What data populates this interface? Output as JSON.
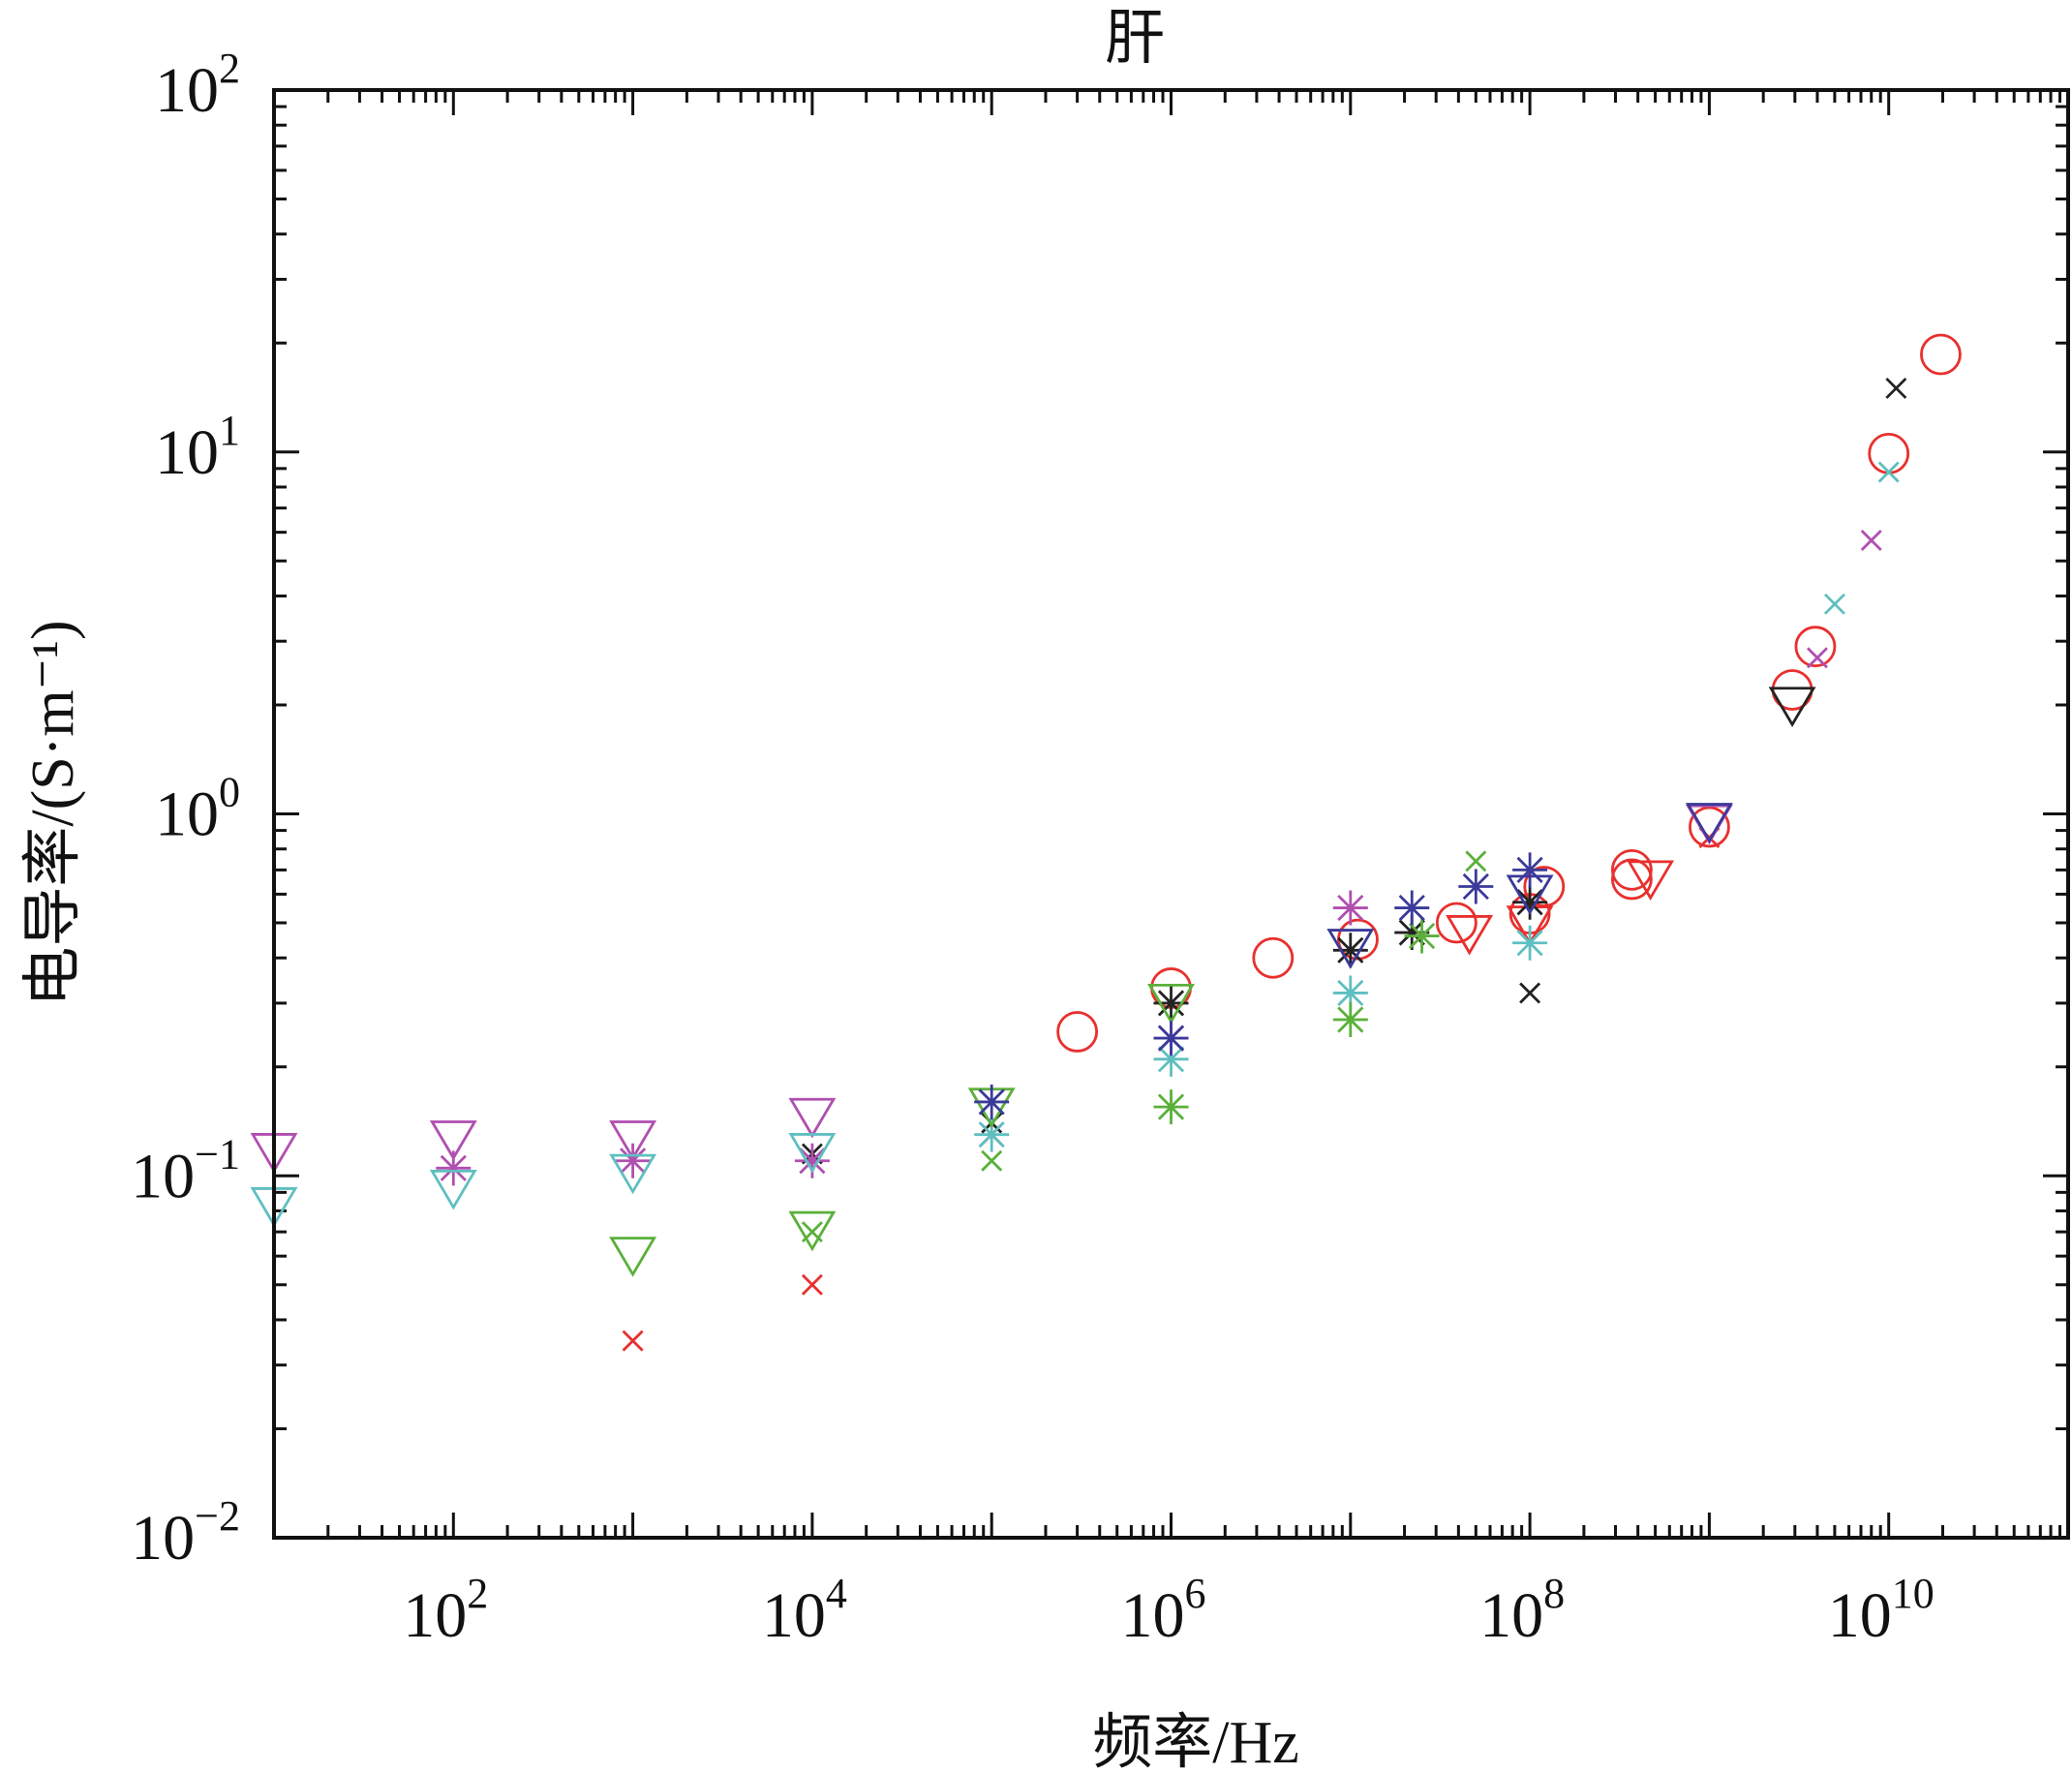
{
  "chart_data": {
    "type": "scatter",
    "title": "肝",
    "xlabel": "频率/Hz",
    "ylabel": "电导率/(S·m⁻¹)",
    "xscale": "log",
    "yscale": "log",
    "xlim": [
      10,
      100000000000.0
    ],
    "ylim": [
      0.01,
      100
    ],
    "xticks": [
      {
        "base": "10",
        "exp": "2",
        "value": 100
      },
      {
        "base": "10",
        "exp": "4",
        "value": 10000
      },
      {
        "base": "10",
        "exp": "6",
        "value": 1000000
      },
      {
        "base": "10",
        "exp": "8",
        "value": 100000000
      },
      {
        "base": "10",
        "exp": "10",
        "value": 10000000000
      }
    ],
    "yticks": [
      {
        "base": "10",
        "exp": "−2",
        "value": 0.01
      },
      {
        "base": "10",
        "exp": "−1",
        "value": 0.1
      },
      {
        "base": "10",
        "exp": "0",
        "value": 1
      },
      {
        "base": "10",
        "exp": "1",
        "value": 10
      },
      {
        "base": "10",
        "exp": "2",
        "value": 100
      }
    ],
    "grid": false,
    "series": [
      {
        "name": "red-circle",
        "color": "#e8302e",
        "marker": "circle",
        "points": [
          [
            300000.0,
            0.25
          ],
          [
            1000000.0,
            0.33
          ],
          [
            3700000.0,
            0.4
          ],
          [
            11000000.0,
            0.45
          ],
          [
            39000000.0,
            0.5
          ],
          [
            100000000.0,
            0.53
          ],
          [
            120000000.0,
            0.63
          ],
          [
            370000000.0,
            0.66
          ],
          [
            370000000.0,
            0.7
          ],
          [
            1000000000.0,
            0.92
          ],
          [
            2900000000.0,
            2.2
          ],
          [
            3900000000.0,
            2.9
          ],
          [
            10000000000.0,
            9.9
          ],
          [
            19500000000.0,
            18.6
          ]
        ]
      },
      {
        "name": "red-triangle",
        "color": "#e8302e",
        "marker": "triangle",
        "points": [
          [
            46000000.0,
            0.48
          ],
          [
            100000000.0,
            0.51
          ],
          [
            470000000.0,
            0.68
          ]
        ]
      },
      {
        "name": "red-x",
        "color": "#e8302e",
        "marker": "x",
        "points": [
          [
            1000.0,
            0.035
          ],
          [
            10000.0,
            0.05
          ],
          [
            100000.0,
            0.13
          ],
          [
            1000000000.0,
            0.86
          ]
        ]
      },
      {
        "name": "black-triangle",
        "color": "#222222",
        "marker": "triangle",
        "points": [
          [
            2900000000.0,
            2.05
          ]
        ]
      },
      {
        "name": "black-x",
        "color": "#222222",
        "marker": "x",
        "points": [
          [
            11000000000.0,
            15
          ],
          [
            100000000.0,
            0.32
          ],
          [
            100000.0,
            0.14
          ],
          [
            10000.0,
            0.115
          ]
        ]
      },
      {
        "name": "black-asterisk",
        "color": "#222222",
        "marker": "asterisk",
        "points": [
          [
            1000000.0,
            0.3
          ],
          [
            22000000.0,
            0.47
          ],
          [
            100000000.0,
            0.57
          ],
          [
            10000000.0,
            0.42
          ]
        ]
      },
      {
        "name": "magenta-triangle",
        "color": "#b04fb0",
        "marker": "triangle",
        "points": [
          [
            10,
            0.12
          ],
          [
            100,
            0.13
          ],
          [
            1000.0,
            0.13
          ],
          [
            10000.0,
            0.15
          ],
          [
            1000000000.0,
            0.97
          ]
        ]
      },
      {
        "name": "magenta-asterisk",
        "color": "#b04fb0",
        "marker": "asterisk",
        "points": [
          [
            100,
            0.105
          ],
          [
            1000.0,
            0.11
          ],
          [
            10000.0,
            0.11
          ],
          [
            10000000.0,
            0.55
          ],
          [
            1000000.0,
            0.24
          ]
        ]
      },
      {
        "name": "magenta-x",
        "color": "#b04fb0",
        "marker": "x",
        "points": [
          [
            8000000000.0,
            5.7
          ],
          [
            4000000000.0,
            2.7
          ]
        ]
      },
      {
        "name": "cyan-triangle",
        "color": "#5fbfc0",
        "marker": "triangle",
        "points": [
          [
            10,
            0.085
          ],
          [
            100,
            0.095
          ],
          [
            1000.0,
            0.105
          ],
          [
            10000.0,
            0.12
          ]
        ]
      },
      {
        "name": "cyan-asterisk",
        "color": "#5fbfc0",
        "marker": "asterisk",
        "points": [
          [
            10000000.0,
            0.32
          ],
          [
            1000000.0,
            0.21
          ],
          [
            100000000.0,
            0.44
          ],
          [
            100000.0,
            0.13
          ]
        ]
      },
      {
        "name": "cyan-x",
        "color": "#5fbfc0",
        "marker": "x",
        "points": [
          [
            5000000000.0,
            3.8
          ],
          [
            10000000000.0,
            8.8
          ]
        ]
      },
      {
        "name": "green-triangle",
        "color": "#5ab03a",
        "marker": "triangle",
        "points": [
          [
            1000.0,
            0.062
          ],
          [
            10000.0,
            0.073
          ],
          [
            100000.0,
            0.16
          ],
          [
            1000000.0,
            0.31
          ]
        ]
      },
      {
        "name": "green-asterisk",
        "color": "#5ab03a",
        "marker": "asterisk",
        "points": [
          [
            1000000.0,
            0.155
          ],
          [
            10000000.0,
            0.27
          ],
          [
            25000000.0,
            0.46
          ]
        ]
      },
      {
        "name": "green-x",
        "color": "#5ab03a",
        "marker": "x",
        "points": [
          [
            100000.0,
            0.11
          ],
          [
            50000000.0,
            0.74
          ],
          [
            10000.0,
            0.07
          ]
        ]
      },
      {
        "name": "blue-triangle",
        "color": "#3a3a9a",
        "marker": "triangle",
        "points": [
          [
            10000000.0,
            0.44
          ],
          [
            100000000.0,
            0.62
          ],
          [
            1000000000.0,
            0.98
          ]
        ]
      },
      {
        "name": "blue-asterisk",
        "color": "#3a3a9a",
        "marker": "asterisk",
        "points": [
          [
            100000.0,
            0.16
          ],
          [
            22000000.0,
            0.55
          ],
          [
            50000000.0,
            0.63
          ],
          [
            100000000.0,
            0.7
          ],
          [
            1000000.0,
            0.24
          ]
        ]
      }
    ]
  }
}
